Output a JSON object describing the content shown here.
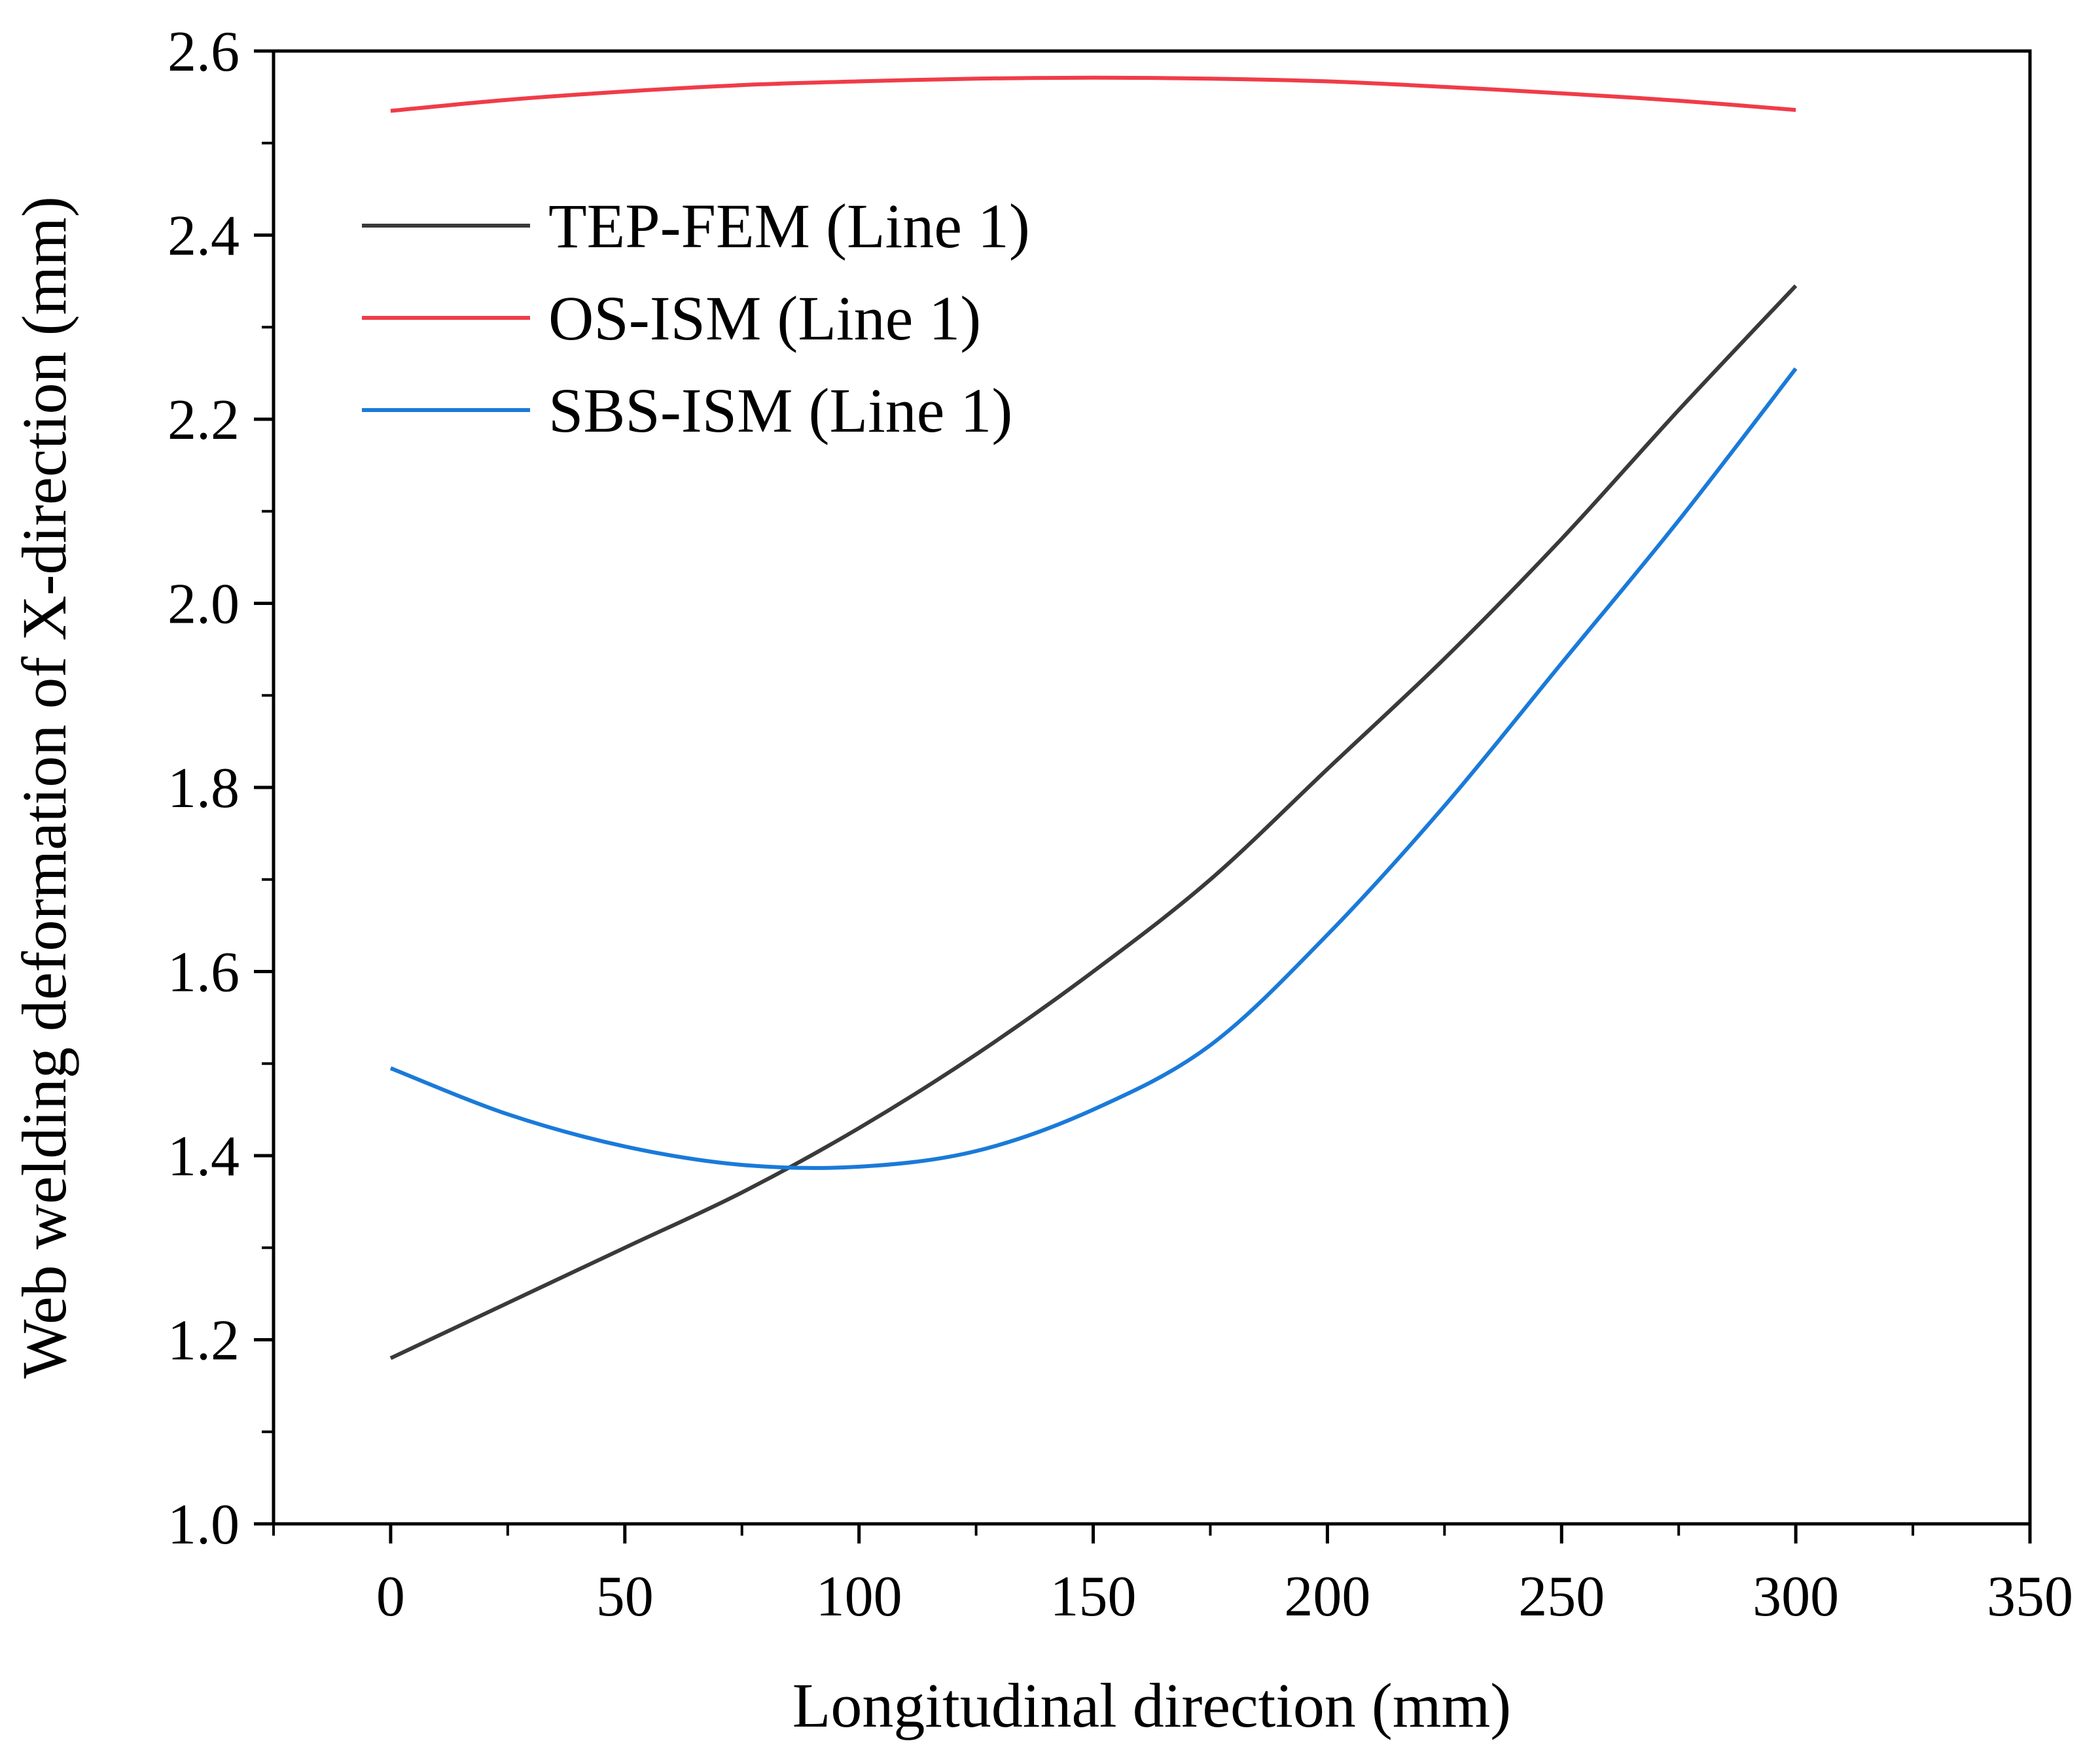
{
  "chart_data": {
    "type": "line",
    "title": "",
    "xlabel": "Longitudinal direction (mm)",
    "ylabel": "Web welding deformation of X-direction (mm)",
    "xlim": [
      -25,
      350
    ],
    "ylim": [
      1.0,
      2.6
    ],
    "xticks": [
      0,
      50,
      100,
      150,
      200,
      250,
      300,
      350
    ],
    "xtick_labels": [
      "0",
      "50",
      "100",
      "150",
      "200",
      "250",
      "300",
      "350"
    ],
    "yticks": [
      1.0,
      1.2,
      1.4,
      1.6,
      1.8,
      2.0,
      2.2,
      2.4,
      2.6
    ],
    "ytick_labels": [
      "1.0",
      "1.2",
      "1.4",
      "1.6",
      "1.8",
      "2.0",
      "2.2",
      "2.4",
      "2.6"
    ],
    "x_minor_step": 25,
    "y_minor_step": 0.1,
    "grid": false,
    "legend_position": "top-left",
    "series": [
      {
        "name": "TEP-FEM (Line 1)",
        "color": "#3a3a3a",
        "x": [
          0,
          25,
          50,
          75,
          100,
          125,
          150,
          175,
          200,
          225,
          250,
          275,
          300
        ],
        "values": [
          1.18,
          1.24,
          1.3,
          1.36,
          1.43,
          1.51,
          1.6,
          1.7,
          1.82,
          1.94,
          2.07,
          2.21,
          2.345
        ]
      },
      {
        "name": "OS-ISM (Line 1)",
        "color": "#f03c48",
        "x": [
          0,
          25,
          50,
          75,
          100,
          125,
          150,
          175,
          200,
          225,
          250,
          275,
          300
        ],
        "values": [
          2.535,
          2.547,
          2.556,
          2.563,
          2.567,
          2.57,
          2.571,
          2.57,
          2.567,
          2.561,
          2.554,
          2.546,
          2.536
        ]
      },
      {
        "name": "SBS-ISM (Line 1)",
        "color": "#1a7ad9",
        "x": [
          0,
          25,
          50,
          75,
          100,
          125,
          150,
          175,
          200,
          225,
          250,
          275,
          300
        ],
        "values": [
          1.495,
          1.445,
          1.41,
          1.39,
          1.388,
          1.405,
          1.45,
          1.52,
          1.64,
          1.78,
          1.935,
          2.09,
          2.255
        ]
      }
    ]
  }
}
